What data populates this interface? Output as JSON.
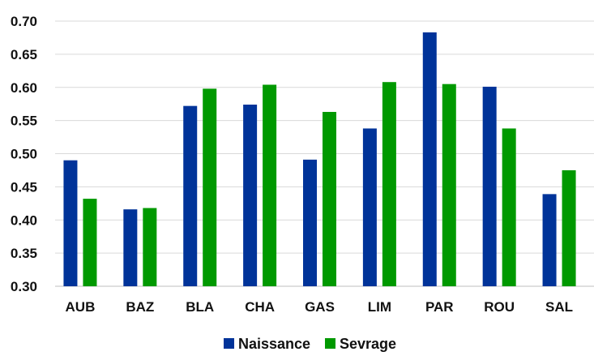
{
  "chart_data": {
    "type": "bar",
    "title": "",
    "xlabel": "",
    "ylabel": "",
    "categories": [
      "AUB",
      "BAZ",
      "BLA",
      "CHA",
      "GAS",
      "LIM",
      "PAR",
      "ROU",
      "SAL"
    ],
    "series": [
      {
        "name": "Naissance",
        "color": "#003399",
        "values": [
          0.49,
          0.416,
          0.572,
          0.574,
          0.491,
          0.538,
          0.683,
          0.601,
          0.439
        ]
      },
      {
        "name": "Sevrage",
        "color": "#009900",
        "values": [
          0.432,
          0.418,
          0.598,
          0.604,
          0.563,
          0.608,
          0.605,
          0.538,
          0.475
        ]
      }
    ],
    "ylim": [
      0.3,
      0.7
    ],
    "yticks": [
      "0.30",
      "0.35",
      "0.40",
      "0.45",
      "0.50",
      "0.55",
      "0.60",
      "0.65",
      "0.70"
    ],
    "grid": true,
    "legend": "bottom"
  }
}
